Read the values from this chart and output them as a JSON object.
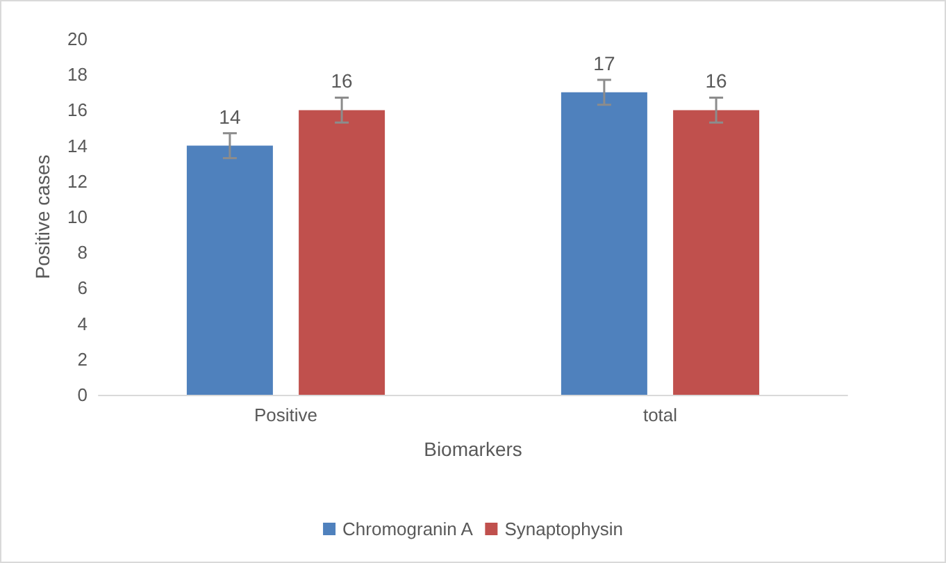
{
  "chart_data": {
    "type": "bar",
    "xlabel": "Biomarkers",
    "ylabel": "Positive cases",
    "categories": [
      "Positive",
      "total"
    ],
    "series": [
      {
        "name": "Chromogranin A",
        "color": "#4f81bd",
        "values": [
          14,
          17
        ],
        "errors": [
          0.7,
          0.7
        ]
      },
      {
        "name": "Synaptophysin",
        "color": "#c0504d",
        "values": [
          16,
          16
        ],
        "errors": [
          0.7,
          0.7
        ]
      }
    ],
    "data_labels": true,
    "ylim": [
      0,
      20
    ],
    "yticks": [
      0,
      2,
      4,
      6,
      8,
      10,
      12,
      14,
      16,
      18,
      20
    ],
    "grid": false,
    "legend": "bottom"
  }
}
